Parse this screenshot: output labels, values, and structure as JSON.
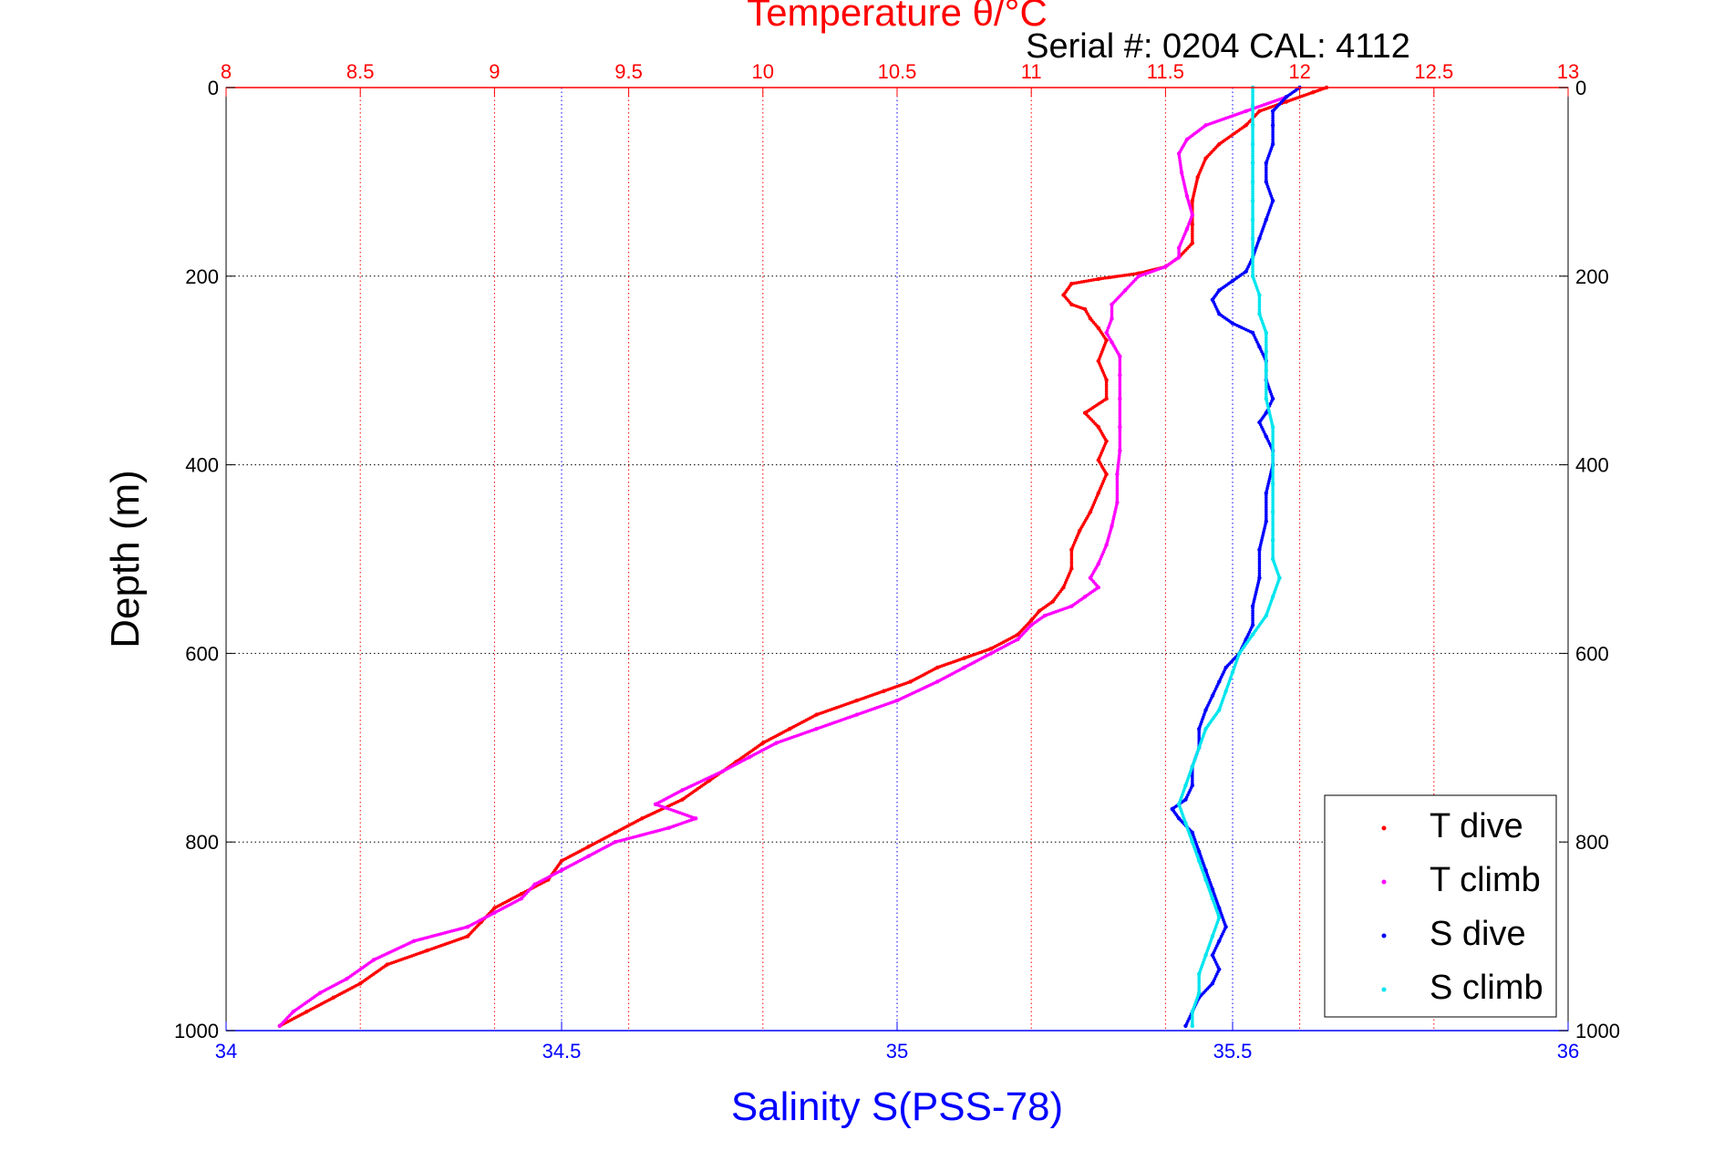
{
  "chart_data": {
    "type": "scatter",
    "title": "Temperature θ/°C",
    "subtitle": "Serial #: 0204  CAL: 4112",
    "ylabel": "Depth (m)",
    "xlabel_bottom": "Salinity S(PSS-78)",
    "xlabel_top": "Temperature θ/°C",
    "y_reversed": true,
    "ylim": [
      0,
      1000
    ],
    "yticks": [
      0,
      200,
      400,
      600,
      800,
      1000
    ],
    "ytick_labels": [
      "0",
      "200",
      "400",
      "600",
      "800",
      "1000"
    ],
    "salinity_axis": {
      "range": [
        34,
        36
      ],
      "ticks": [
        34,
        34.5,
        35,
        35.5,
        36
      ],
      "tick_labels": [
        "34",
        "34.5",
        "35",
        "35.5",
        "36"
      ],
      "color": "#0000ff"
    },
    "temperature_axis": {
      "range": [
        8,
        13
      ],
      "ticks": [
        8,
        8.5,
        9,
        9.5,
        10,
        10.5,
        11,
        11.5,
        12,
        12.5,
        13
      ],
      "tick_labels": [
        "8",
        "8.5",
        "9",
        "9.5",
        "10",
        "10.5",
        "11",
        "11.5",
        "12",
        "12.5",
        "13"
      ],
      "color": "#ff0000"
    },
    "grid": true,
    "legend_position": "bottom-right",
    "series": [
      {
        "name": "T dive",
        "axis": "temperature",
        "color": "#ff0000",
        "points": [
          [
            12.1,
            0
          ],
          [
            12.05,
            5
          ],
          [
            11.95,
            15
          ],
          [
            11.85,
            25
          ],
          [
            11.8,
            40
          ],
          [
            11.7,
            60
          ],
          [
            11.65,
            75
          ],
          [
            11.62,
            95
          ],
          [
            11.6,
            120
          ],
          [
            11.6,
            145
          ],
          [
            11.6,
            165
          ],
          [
            11.55,
            180
          ],
          [
            11.5,
            190
          ],
          [
            11.4,
            197
          ],
          [
            11.25,
            203
          ],
          [
            11.15,
            208
          ],
          [
            11.12,
            220
          ],
          [
            11.15,
            230
          ],
          [
            11.2,
            235
          ],
          [
            11.22,
            245
          ],
          [
            11.25,
            255
          ],
          [
            11.28,
            268
          ],
          [
            11.25,
            290
          ],
          [
            11.28,
            310
          ],
          [
            11.28,
            330
          ],
          [
            11.2,
            345
          ],
          [
            11.25,
            360
          ],
          [
            11.28,
            375
          ],
          [
            11.25,
            395
          ],
          [
            11.28,
            410
          ],
          [
            11.25,
            430
          ],
          [
            11.22,
            450
          ],
          [
            11.18,
            470
          ],
          [
            11.15,
            490
          ],
          [
            11.15,
            510
          ],
          [
            11.12,
            530
          ],
          [
            11.08,
            545
          ],
          [
            11.03,
            555
          ],
          [
            11.0,
            565
          ],
          [
            10.95,
            580
          ],
          [
            10.85,
            595
          ],
          [
            10.75,
            605
          ],
          [
            10.65,
            615
          ],
          [
            10.55,
            630
          ],
          [
            10.45,
            640
          ],
          [
            10.35,
            650
          ],
          [
            10.2,
            665
          ],
          [
            10.1,
            680
          ],
          [
            10.0,
            695
          ],
          [
            9.9,
            715
          ],
          [
            9.8,
            735
          ],
          [
            9.7,
            755
          ],
          [
            9.55,
            775
          ],
          [
            9.45,
            790
          ],
          [
            9.35,
            805
          ],
          [
            9.25,
            820
          ],
          [
            9.2,
            840
          ],
          [
            9.1,
            855
          ],
          [
            9.0,
            870
          ],
          [
            8.95,
            885
          ],
          [
            8.9,
            900
          ],
          [
            8.75,
            915
          ],
          [
            8.6,
            930
          ],
          [
            8.5,
            950
          ],
          [
            8.4,
            965
          ],
          [
            8.3,
            980
          ],
          [
            8.2,
            995
          ]
        ]
      },
      {
        "name": "T climb",
        "axis": "temperature",
        "color": "#ff00ff",
        "points": [
          [
            11.95,
            10
          ],
          [
            11.8,
            25
          ],
          [
            11.65,
            40
          ],
          [
            11.58,
            55
          ],
          [
            11.55,
            70
          ],
          [
            11.56,
            90
          ],
          [
            11.58,
            115
          ],
          [
            11.6,
            135
          ],
          [
            11.58,
            150
          ],
          [
            11.55,
            170
          ],
          [
            11.55,
            180
          ],
          [
            11.5,
            190
          ],
          [
            11.4,
            200
          ],
          [
            11.35,
            215
          ],
          [
            11.3,
            230
          ],
          [
            11.3,
            245
          ],
          [
            11.28,
            260
          ],
          [
            11.3,
            270
          ],
          [
            11.33,
            285
          ],
          [
            11.33,
            305
          ],
          [
            11.33,
            330
          ],
          [
            11.33,
            360
          ],
          [
            11.33,
            385
          ],
          [
            11.32,
            410
          ],
          [
            11.32,
            440
          ],
          [
            11.3,
            465
          ],
          [
            11.28,
            485
          ],
          [
            11.25,
            505
          ],
          [
            11.22,
            520
          ],
          [
            11.25,
            530
          ],
          [
            11.2,
            540
          ],
          [
            11.15,
            550
          ],
          [
            11.05,
            560
          ],
          [
            11.0,
            570
          ],
          [
            10.95,
            585
          ],
          [
            10.85,
            600
          ],
          [
            10.75,
            615
          ],
          [
            10.65,
            630
          ],
          [
            10.5,
            650
          ],
          [
            10.35,
            665
          ],
          [
            10.2,
            680
          ],
          [
            10.05,
            695
          ],
          [
            9.95,
            710
          ],
          [
            9.85,
            725
          ],
          [
            9.7,
            745
          ],
          [
            9.6,
            760
          ],
          [
            9.75,
            775
          ],
          [
            9.65,
            785
          ],
          [
            9.45,
            800
          ],
          [
            9.35,
            815
          ],
          [
            9.25,
            830
          ],
          [
            9.15,
            845
          ],
          [
            9.1,
            860
          ],
          [
            9.0,
            875
          ],
          [
            8.9,
            890
          ],
          [
            8.7,
            905
          ],
          [
            8.55,
            925
          ],
          [
            8.45,
            945
          ],
          [
            8.35,
            960
          ],
          [
            8.25,
            980
          ],
          [
            8.2,
            995
          ]
        ]
      },
      {
        "name": "S dive",
        "axis": "salinity",
        "color": "#0000ff",
        "points": [
          [
            35.6,
            0
          ],
          [
            35.58,
            10
          ],
          [
            35.56,
            25
          ],
          [
            35.56,
            40
          ],
          [
            35.56,
            60
          ],
          [
            35.55,
            80
          ],
          [
            35.55,
            100
          ],
          [
            35.56,
            120
          ],
          [
            35.55,
            140
          ],
          [
            35.54,
            160
          ],
          [
            35.53,
            180
          ],
          [
            35.52,
            195
          ],
          [
            35.5,
            205
          ],
          [
            35.48,
            215
          ],
          [
            35.47,
            225
          ],
          [
            35.48,
            240
          ],
          [
            35.5,
            250
          ],
          [
            35.53,
            260
          ],
          [
            35.54,
            275
          ],
          [
            35.55,
            290
          ],
          [
            35.55,
            310
          ],
          [
            35.56,
            330
          ],
          [
            35.55,
            345
          ],
          [
            35.54,
            355
          ],
          [
            35.55,
            370
          ],
          [
            35.56,
            385
          ],
          [
            35.56,
            400
          ],
          [
            35.55,
            430
          ],
          [
            35.55,
            460
          ],
          [
            35.54,
            490
          ],
          [
            35.54,
            520
          ],
          [
            35.53,
            550
          ],
          [
            35.53,
            570
          ],
          [
            35.52,
            585
          ],
          [
            35.51,
            600
          ],
          [
            35.49,
            615
          ],
          [
            35.48,
            630
          ],
          [
            35.47,
            645
          ],
          [
            35.46,
            660
          ],
          [
            35.45,
            680
          ],
          [
            35.45,
            700
          ],
          [
            35.44,
            720
          ],
          [
            35.44,
            740
          ],
          [
            35.43,
            755
          ],
          [
            35.41,
            765
          ],
          [
            35.42,
            775
          ],
          [
            35.44,
            790
          ],
          [
            35.45,
            810
          ],
          [
            35.46,
            830
          ],
          [
            35.47,
            850
          ],
          [
            35.48,
            870
          ],
          [
            35.49,
            890
          ],
          [
            35.48,
            905
          ],
          [
            35.47,
            920
          ],
          [
            35.48,
            935
          ],
          [
            35.47,
            950
          ],
          [
            35.45,
            965
          ],
          [
            35.44,
            980
          ],
          [
            35.43,
            995
          ]
        ]
      },
      {
        "name": "S climb",
        "axis": "salinity",
        "color": "#00e5ee",
        "points": [
          [
            35.53,
            0
          ],
          [
            35.53,
            20
          ],
          [
            35.53,
            40
          ],
          [
            35.53,
            60
          ],
          [
            35.53,
            80
          ],
          [
            35.53,
            100
          ],
          [
            35.53,
            120
          ],
          [
            35.53,
            140
          ],
          [
            35.53,
            160
          ],
          [
            35.53,
            180
          ],
          [
            35.53,
            200
          ],
          [
            35.54,
            220
          ],
          [
            35.54,
            240
          ],
          [
            35.55,
            260
          ],
          [
            35.55,
            280
          ],
          [
            35.55,
            300
          ],
          [
            35.55,
            330
          ],
          [
            35.56,
            360
          ],
          [
            35.56,
            390
          ],
          [
            35.56,
            420
          ],
          [
            35.56,
            450
          ],
          [
            35.56,
            480
          ],
          [
            35.56,
            500
          ],
          [
            35.57,
            520
          ],
          [
            35.56,
            540
          ],
          [
            35.55,
            560
          ],
          [
            35.53,
            580
          ],
          [
            35.51,
            600
          ],
          [
            35.5,
            620
          ],
          [
            35.49,
            640
          ],
          [
            35.48,
            660
          ],
          [
            35.46,
            680
          ],
          [
            35.45,
            700
          ],
          [
            35.44,
            720
          ],
          [
            35.43,
            740
          ],
          [
            35.42,
            760
          ],
          [
            35.43,
            780
          ],
          [
            35.44,
            800
          ],
          [
            35.45,
            820
          ],
          [
            35.46,
            840
          ],
          [
            35.47,
            860
          ],
          [
            35.48,
            880
          ],
          [
            35.47,
            900
          ],
          [
            35.46,
            920
          ],
          [
            35.45,
            940
          ],
          [
            35.45,
            960
          ],
          [
            35.44,
            980
          ],
          [
            35.44,
            995
          ]
        ]
      }
    ]
  }
}
